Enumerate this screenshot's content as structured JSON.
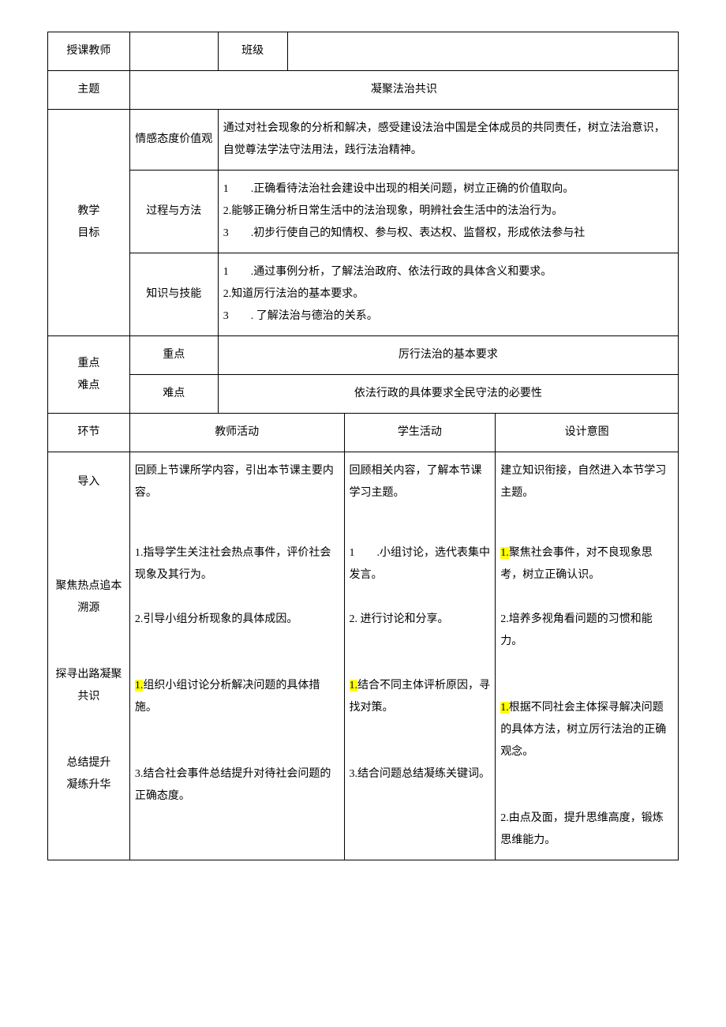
{
  "header": {
    "teacher_label": "授课教师",
    "teacher_value": "",
    "class_label": "班级",
    "class_value": ""
  },
  "theme": {
    "label": "主题",
    "value": "凝聚法治共识"
  },
  "objectives": {
    "label": "教学\n目标",
    "rows": [
      {
        "aspect": "情感态度价值观",
        "content": "通过对社会现象的分析和解决，感受建设法治中国是全体成员的共同责任，树立法治意识，自觉尊法学法守法用法，践行法治精神。"
      },
      {
        "aspect": "过程与方法",
        "items": [
          "1　　.正确看待法治社会建设中出现的相关问题，树立正确的价值取向。",
          "2.能够正确分析日常生活中的法治现象，明辨社会生活中的法治行为。",
          "3　　.初步行使自己的知情权、参与权、表达权、监督权，形成依法参与社"
        ]
      },
      {
        "aspect": "知识与技能",
        "items": [
          "1　　.通过事例分析，了解法治政府、依法行政的具体含义和要求。",
          "2.知道厉行法治的基本要求。",
          "3　　. 了解法治与德治的关系。"
        ]
      }
    ]
  },
  "keypoints": {
    "label": "重点\n难点",
    "rows": [
      {
        "aspect": "重点",
        "content": "厉行法治的基本要求"
      },
      {
        "aspect": "难点",
        "content": "依法行政的具体要求全民守法的必要性"
      }
    ]
  },
  "activities": {
    "headers": {
      "stage": "环节",
      "teacher": "教师活动",
      "student": "学生活动",
      "intent": "设计意图"
    },
    "rows": [
      {
        "stage": "导入",
        "teacher": "回顾上节课所学内容，引出本节课主要内容。",
        "student": "回顾相关内容，了解本节课学习主题。",
        "intent": "建立知识衔接，自然进入本节学习主题。"
      },
      {
        "stage_lines": [
          "聚焦热点追本",
          "溯源",
          "",
          "",
          "探寻出路凝聚",
          "共识",
          "",
          "",
          "总结提升",
          "凝练升华"
        ],
        "teacher_block1_num": "1.",
        "teacher_block1_text": "指导学生关注社会热点事件，评价社会现象及其行为。",
        "teacher_block2": "2.引导小组分析现象的具体成因。",
        "teacher_block3_hl": "1.",
        "teacher_block3_text": "组织小组讨论分析解决问题的具体措施。",
        "teacher_block4": "3.结合社会事件总结提升对待社会问题的正确态度。",
        "student_block1": "1　　.小组讨论，选代表集中发言。",
        "student_block2": "2. 进行讨论和分享。",
        "student_block3_hl": "1.",
        "student_block3_text": "结合不同主体评析原因，寻找对策。",
        "student_block4": "3.结合问题总结凝练关键词。",
        "intent_block1_hl": "1.",
        "intent_block1_text": "聚焦社会事件，对不良现象思考，树立正确认识。",
        "intent_block2": "2.培养多视角看问题的习惯和能力。",
        "intent_block3_hl": "1.",
        "intent_block3_text": "根据不同社会主体探寻解决问题的具体方法，树立厉行法治的正确观念。",
        "intent_block4": "2.由点及面，提升思维高度，锻炼思维能力。"
      }
    ]
  },
  "colors": {
    "highlight": "#ffff00",
    "border": "#000000",
    "text": "#000000",
    "background": "#ffffff"
  }
}
